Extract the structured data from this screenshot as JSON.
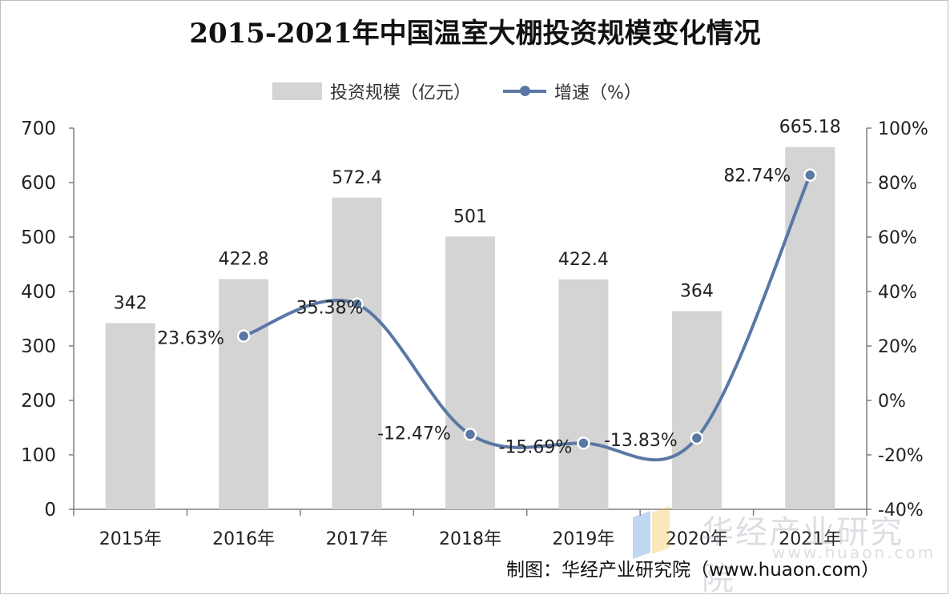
{
  "chart_data": {
    "type": "bar",
    "title": "2015-2021年中国温室大棚投资规模变化情况",
    "categories": [
      "2015年",
      "2016年",
      "2017年",
      "2018年",
      "2019年",
      "2020年",
      "2021年"
    ],
    "series": [
      {
        "name": "投资规模（亿元）",
        "type": "bar",
        "axis": "left",
        "values": [
          342,
          422.8,
          572.4,
          501,
          422.4,
          364,
          665.18
        ],
        "labels": [
          "342",
          "422.8",
          "572.4",
          "501",
          "422.4",
          "364",
          "665.18"
        ]
      },
      {
        "name": "增速（%）",
        "type": "line",
        "axis": "right",
        "values": [
          null,
          23.63,
          35.38,
          -12.47,
          -15.69,
          -13.83,
          82.74
        ],
        "labels": [
          "",
          "23.63%",
          "35.38%",
          "-12.47%",
          "-15.69%",
          "-13.83%",
          "82.74%"
        ]
      }
    ],
    "ylim_left": [
      0,
      700
    ],
    "yticks_left": [
      "0",
      "100",
      "200",
      "300",
      "400",
      "500",
      "600",
      "700"
    ],
    "ylim_right": [
      -40,
      100
    ],
    "yticks_right": [
      "-40%",
      "-20%",
      "0%",
      "20%",
      "40%",
      "60%",
      "80%",
      "100%"
    ],
    "bar_color": "#d4d4d4",
    "line_color": "#5a78a4",
    "grid": false,
    "legend_position": "top"
  },
  "source": "制图：华经产业研究院（www.huaon.com）",
  "watermark": {
    "text": "华经产业研究院",
    "url": "www.huaon.com"
  }
}
